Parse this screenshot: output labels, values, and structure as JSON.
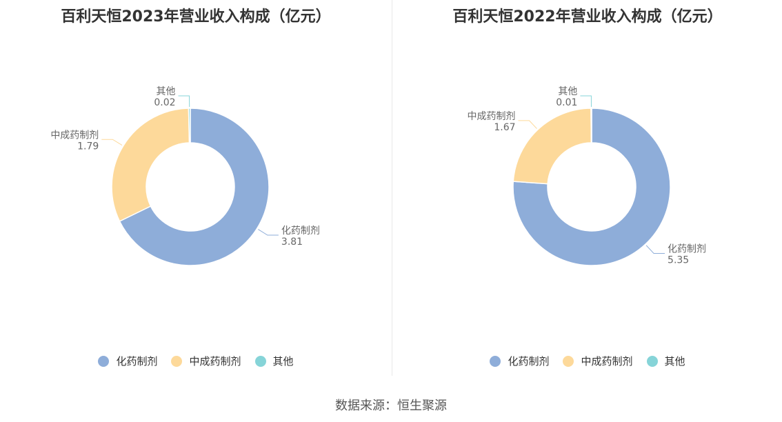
{
  "colors": {
    "化药制剂": "#8eadd9",
    "中成药制剂": "#fdd99a",
    "其他": "#86d4d8"
  },
  "source": "数据来源：恒生聚源",
  "chart_data": [
    {
      "type": "pie",
      "title": "百利天恒2023年营业收入构成（亿元）",
      "slices": [
        {
          "name": "化药制剂",
          "value": 3.81,
          "label": "3.81"
        },
        {
          "name": "中成药制剂",
          "value": 1.79,
          "label": "1.79"
        },
        {
          "name": "其他",
          "value": 0.02,
          "label": "0.02"
        }
      ],
      "legend": [
        "化药制剂",
        "中成药制剂",
        "其他"
      ],
      "legend_position": "bottom"
    },
    {
      "type": "pie",
      "title": "百利天恒2022年营业收入构成（亿元）",
      "slices": [
        {
          "name": "化药制剂",
          "value": 5.35,
          "label": "5.35"
        },
        {
          "name": "中成药制剂",
          "value": 1.67,
          "label": "1.67"
        },
        {
          "name": "其他",
          "value": 0.01,
          "label": "0.01"
        }
      ],
      "legend": [
        "化药制剂",
        "中成药制剂",
        "其他"
      ],
      "legend_position": "bottom"
    }
  ]
}
